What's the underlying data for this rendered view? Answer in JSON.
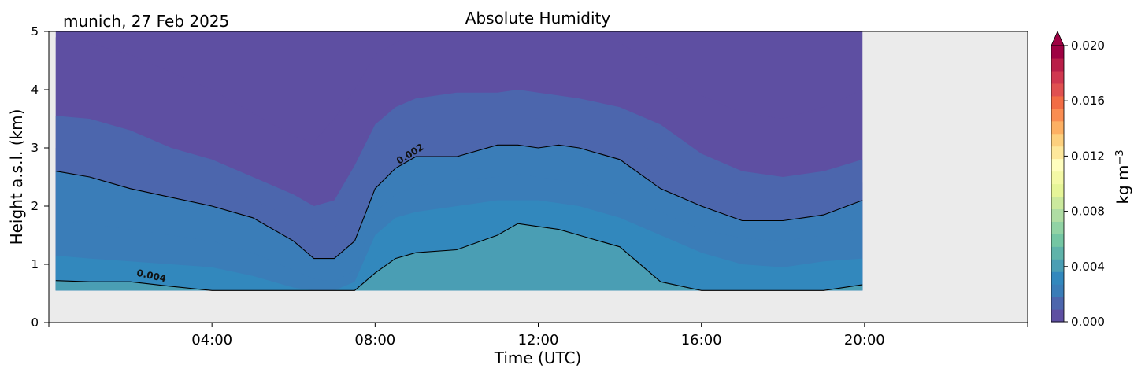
{
  "header": {
    "location_date": "munich, 27 Feb 2025"
  },
  "chart_data": {
    "type": "heatmap",
    "title": "Absolute Humidity",
    "xlabel": "Time (UTC)",
    "ylabel": "Height a.s.l. (km)",
    "xlim_hours": [
      0,
      24
    ],
    "ylim": [
      0,
      5
    ],
    "x_ticks": [
      {
        "hour": 4,
        "label": "04:00"
      },
      {
        "hour": 8,
        "label": "08:00"
      },
      {
        "hour": 12,
        "label": "12:00"
      },
      {
        "hour": 16,
        "label": "16:00"
      },
      {
        "hour": 20,
        "label": "20:00"
      }
    ],
    "y_ticks": [
      0,
      1,
      2,
      3,
      4,
      5
    ],
    "data_time_range_hours": [
      0.17,
      19.95
    ],
    "data_height_range_km": [
      0.55,
      5.0
    ],
    "missing_data_color": "#ebebeb",
    "colorbar": {
      "label": "kg m",
      "label_exponent": "−3",
      "range": [
        0,
        0.02
      ],
      "extend": "max",
      "ticks": [
        {
          "value": 0.0,
          "label": "0.000"
        },
        {
          "value": 0.004,
          "label": "0.004"
        },
        {
          "value": 0.008,
          "label": "0.008"
        },
        {
          "value": 0.012,
          "label": "0.012"
        },
        {
          "value": 0.016,
          "label": "0.016"
        },
        {
          "value": 0.02,
          "label": "0.020"
        }
      ],
      "colors": [
        "#5e4fa2",
        "#4c66ad",
        "#3a7db8",
        "#3288bd",
        "#4a9eb4",
        "#5fb3aa",
        "#74c6a3",
        "#91d3a4",
        "#afdda3",
        "#cbe99d",
        "#e6f598",
        "#f4f9a6",
        "#fffebe",
        "#fee89b",
        "#fdd07e",
        "#fdb063",
        "#fa8d52",
        "#f26c44",
        "#e05050",
        "#d0374f",
        "#b91e48",
        "#9e0142"
      ]
    },
    "fill_levels": [
      0.0,
      0.0005,
      0.001,
      0.0015,
      0.002,
      0.0025,
      0.003,
      0.0035,
      0.004,
      0.0045
    ],
    "contours": [
      {
        "level": 0.002,
        "label": "0.002"
      },
      {
        "level": 0.004,
        "label": "0.004"
      }
    ],
    "iso_lines": {
      "times_hours": [
        0.17,
        1,
        2,
        3,
        4,
        5,
        6,
        6.5,
        7,
        7.5,
        8,
        8.5,
        9,
        10,
        11,
        11.5,
        12,
        12.5,
        13,
        14,
        15,
        16,
        17,
        18,
        19,
        19.95
      ],
      "levels": [
        {
          "level": 0.0005,
          "heights_km": [
            4.9,
            4.8,
            4.6,
            4.3,
            4.0,
            3.6,
            3.2,
            3.1,
            3.5,
            4.0,
            4.6,
            4.8,
            5.0,
            5.0,
            5.0,
            5.0,
            5.0,
            5.0,
            5.0,
            4.8,
            4.4,
            3.9,
            3.6,
            3.5,
            3.7,
            4.0
          ]
        },
        {
          "level": 0.001,
          "heights_km": [
            3.55,
            3.5,
            3.3,
            3.0,
            2.8,
            2.5,
            2.2,
            2.0,
            2.1,
            2.7,
            3.4,
            3.7,
            3.85,
            3.95,
            3.95,
            4.0,
            3.95,
            3.9,
            3.85,
            3.7,
            3.4,
            2.9,
            2.6,
            2.5,
            2.6,
            2.8
          ]
        },
        {
          "level": 0.0015,
          "heights_km": [
            3.0,
            2.95,
            2.8,
            2.6,
            2.4,
            2.1,
            1.8,
            1.6,
            1.6,
            2.3,
            3.0,
            3.2,
            3.35,
            3.45,
            3.5,
            3.55,
            3.5,
            3.45,
            3.35,
            3.2,
            2.9,
            2.4,
            2.2,
            2.1,
            2.2,
            2.4
          ]
        },
        {
          "level": 0.002,
          "heights_km": [
            2.6,
            2.5,
            2.3,
            2.15,
            2.0,
            1.8,
            1.4,
            1.1,
            1.1,
            1.4,
            2.3,
            2.65,
            2.85,
            2.85,
            3.05,
            3.05,
            3.0,
            3.05,
            3.0,
            2.8,
            2.3,
            2.0,
            1.75,
            1.75,
            1.85,
            2.1
          ]
        },
        {
          "level": 0.0025,
          "heights_km": [
            1.75,
            1.7,
            1.6,
            1.5,
            1.4,
            1.2,
            0.9,
            0.75,
            0.7,
            0.9,
            1.9,
            2.2,
            2.35,
            2.45,
            2.5,
            2.55,
            2.5,
            2.45,
            2.4,
            2.2,
            1.9,
            1.6,
            1.45,
            1.4,
            1.5,
            1.6
          ]
        },
        {
          "level": 0.003,
          "heights_km": [
            1.15,
            1.1,
            1.05,
            1.0,
            0.95,
            0.8,
            0.6,
            0.55,
            0.55,
            0.7,
            1.5,
            1.8,
            1.9,
            2.0,
            2.1,
            2.1,
            2.1,
            2.05,
            2.0,
            1.8,
            1.5,
            1.2,
            1.0,
            0.95,
            1.05,
            1.1
          ]
        },
        {
          "level": 0.0035,
          "heights_km": [
            0.9,
            0.85,
            0.8,
            0.75,
            0.7,
            0.6,
            0.55,
            0.55,
            0.55,
            0.55,
            1.1,
            1.35,
            1.45,
            1.55,
            1.65,
            1.7,
            1.7,
            1.65,
            1.6,
            1.4,
            1.1,
            0.85,
            0.7,
            0.65,
            0.75,
            0.8
          ]
        },
        {
          "level": 0.004,
          "heights_km": [
            0.72,
            0.7,
            0.7,
            0.62,
            0.55,
            0.55,
            0.55,
            0.55,
            0.55,
            0.55,
            0.85,
            1.1,
            1.2,
            1.25,
            1.5,
            1.7,
            1.65,
            1.6,
            1.5,
            1.3,
            0.7,
            0.55,
            0.55,
            0.55,
            0.55,
            0.65
          ]
        },
        {
          "level": 0.0045,
          "heights_km": [
            0.55,
            0.55,
            0.55,
            0.55,
            0.55,
            0.55,
            0.55,
            0.55,
            0.55,
            0.55,
            0.6,
            0.75,
            0.9,
            1.0,
            1.15,
            1.3,
            1.3,
            1.2,
            1.05,
            0.85,
            0.55,
            0.55,
            0.55,
            0.55,
            0.55,
            0.55
          ]
        }
      ]
    },
    "contour_label_positions": [
      {
        "level": 0.002,
        "hour": 8.9,
        "km": 2.85,
        "angle_deg": -32
      },
      {
        "level": 0.004,
        "hour": 2.5,
        "km": 0.75,
        "angle_deg": 12
      }
    ]
  }
}
